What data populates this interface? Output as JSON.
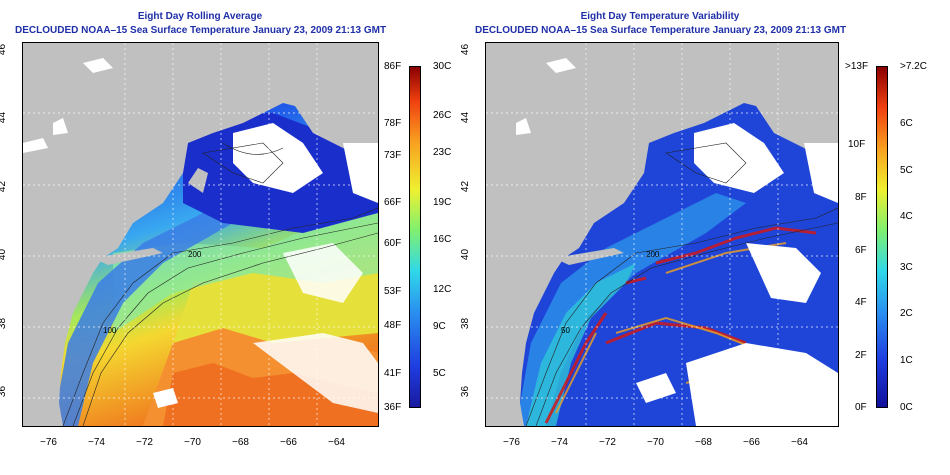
{
  "left_panel": {
    "title": "Eight Day Rolling Average",
    "subtitle": "DECLOUDED NOAA–15 Sea Surface Temperature January 23, 2009 21:13 GMT",
    "colorbar_f": [
      "86F",
      "78F",
      "73F",
      "66F",
      "60F",
      "53F",
      "48F",
      "41F",
      "36F"
    ],
    "colorbar_c": [
      "30C",
      "26C",
      "23C",
      "19C",
      "16C",
      "12C",
      "9C",
      "5C"
    ]
  },
  "right_panel": {
    "title": "Eight Day Temperature Variability",
    "subtitle": "DECLOUDED NOAA–15 Sea Surface Temperature January 23, 2009 21:13 GMT",
    "colorbar_f": [
      ">13F",
      "10F",
      "8F",
      "6F",
      "4F",
      "2F",
      "0F"
    ],
    "colorbar_c": [
      ">7.2C",
      "6C",
      "5C",
      "4C",
      "3C",
      "2C",
      "1C",
      "0C"
    ]
  },
  "lon_ticks": [
    "−76",
    "−74",
    "−72",
    "−70",
    "−68",
    "−66",
    "−64"
  ],
  "lat_ticks": [
    "46",
    "44",
    "42",
    "40",
    "38",
    "36"
  ],
  "contour_labels": [
    "200",
    "100",
    "50"
  ],
  "colors": {
    "land": "#c0c0c0",
    "cloud": "#ffffff",
    "title": "#1f2fa8"
  }
}
